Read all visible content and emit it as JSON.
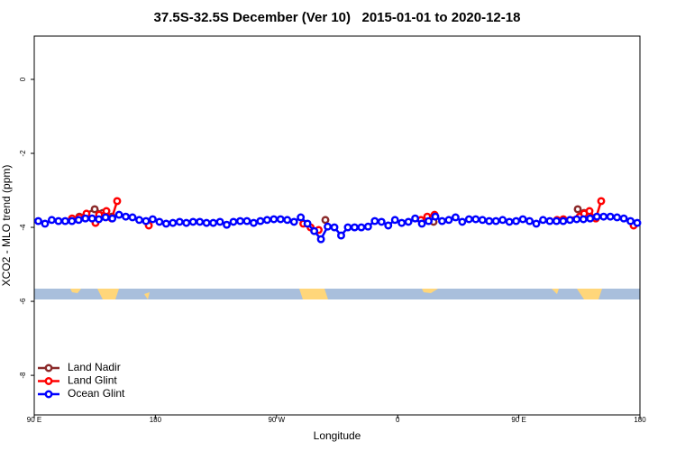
{
  "chart_data": {
    "type": "line",
    "title": "37.5S-32.5S December (Ver 10)   2015-01-01 to 2020-12-18",
    "x_label": "Longitude",
    "y_label": "XCO2 - MLO trend (ppm)",
    "xlim": [
      90,
      540
    ],
    "ylim": [
      -9.07,
      1.17
    ],
    "xticks": [
      {
        "value": 90,
        "label": "90 E"
      },
      {
        "value": 180,
        "label": "180"
      },
      {
        "value": 270,
        "label": "90 W"
      },
      {
        "value": 360,
        "label": "0"
      },
      {
        "value": 450,
        "label": "90 E"
      },
      {
        "value": 540,
        "label": "180"
      }
    ],
    "yticks": [
      0,
      -2,
      -4,
      -6,
      -8
    ],
    "legend": "bottom-left",
    "series": [
      {
        "name": "Land Nadir",
        "color": "#8b2a2a",
        "x": [
          123.5,
          134.9,
          140.9,
          147.6,
          null,
          306.3,
          null,
          386.7,
          null,
          493.8,
          498.5
        ],
        "values": [
          -3.71,
          -3.51,
          -3.61,
          -3.71,
          null,
          -3.8,
          null,
          -3.85,
          null,
          -3.51,
          -3.61
        ]
      },
      {
        "name": "Land Glint",
        "color": "#ff0000",
        "x": [
          118.1,
          123.5,
          128.8,
          135.5,
          138.2,
          143.6,
          147.6,
          151.6,
          null,
          175.1,
          null,
          289.9,
          295.3,
          301.3,
          null,
          377.3,
          382.0,
          387.4,
          null,
          478.4,
          483.1,
          495.2,
          498.5,
          502.5,
          507.2,
          511.2,
          null,
          535.3
        ],
        "values": [
          -3.76,
          -3.73,
          -3.63,
          -3.88,
          -3.66,
          -3.56,
          -3.76,
          -3.29,
          null,
          -3.95,
          null,
          -3.9,
          -4.0,
          -4.07,
          null,
          -3.8,
          -3.71,
          -3.66,
          null,
          -3.8,
          -3.78,
          -3.71,
          -3.63,
          -3.56,
          -3.76,
          -3.29,
          null,
          -3.95
        ]
      },
      {
        "name": "Ocean Glint",
        "color": "#0000ff",
        "x": [
          93,
          98,
          103,
          108,
          113,
          118,
          123,
          128,
          133,
          138,
          143,
          148,
          153,
          158,
          163,
          168,
          173,
          178,
          183,
          188,
          193,
          198,
          203,
          208,
          213,
          218,
          223,
          228,
          233,
          238,
          243,
          248,
          253,
          258,
          263,
          268,
          273,
          278,
          283,
          288,
          293,
          298,
          303,
          308,
          313,
          318,
          323,
          328,
          333,
          338,
          343,
          348,
          353,
          358,
          363,
          368,
          373,
          378,
          383,
          388,
          393,
          398,
          403,
          408,
          413,
          418,
          423,
          428,
          433,
          438,
          443,
          448,
          453,
          458,
          463,
          468,
          473,
          478,
          483,
          488,
          493,
          498,
          503,
          508,
          513,
          518,
          523,
          528,
          533,
          538
        ],
        "values": [
          -3.83,
          -3.9,
          -3.8,
          -3.83,
          -3.83,
          -3.83,
          -3.8,
          -3.76,
          -3.76,
          -3.78,
          -3.73,
          -3.76,
          -3.66,
          -3.71,
          -3.73,
          -3.8,
          -3.83,
          -3.78,
          -3.85,
          -3.9,
          -3.88,
          -3.85,
          -3.88,
          -3.85,
          -3.85,
          -3.88,
          -3.88,
          -3.85,
          -3.93,
          -3.85,
          -3.83,
          -3.83,
          -3.88,
          -3.83,
          -3.8,
          -3.78,
          -3.78,
          -3.8,
          -3.85,
          -3.73,
          -3.9,
          -4.1,
          -4.32,
          -3.98,
          -4.0,
          -4.22,
          -4.0,
          -4.0,
          -4.0,
          -3.98,
          -3.83,
          -3.85,
          -3.95,
          -3.8,
          -3.88,
          -3.85,
          -3.76,
          -3.9,
          -3.83,
          -3.71,
          -3.83,
          -3.8,
          -3.73,
          -3.85,
          -3.78,
          -3.78,
          -3.8,
          -3.83,
          -3.83,
          -3.8,
          -3.85,
          -3.83,
          -3.78,
          -3.83,
          -3.9,
          -3.8,
          -3.83,
          -3.83,
          -3.83,
          -3.8,
          -3.78,
          -3.78,
          -3.76,
          -3.71,
          -3.71,
          -3.71,
          -3.73,
          -3.76,
          -3.83,
          -3.88
        ]
      }
    ]
  }
}
